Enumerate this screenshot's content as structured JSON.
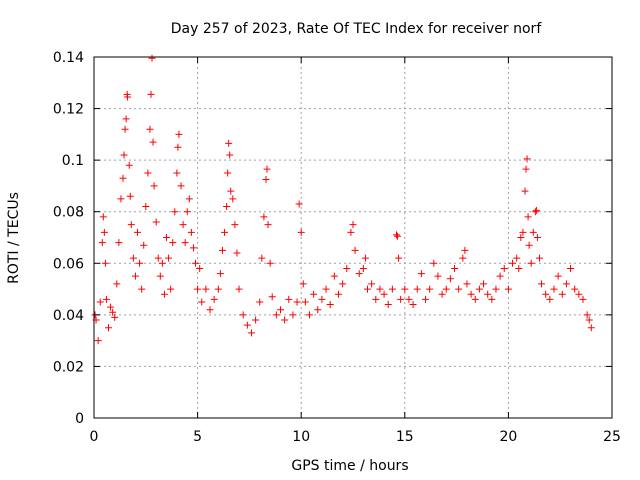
{
  "chart_data": {
    "type": "scatter",
    "title": "Day 257 of 2023, Rate Of TEC Index for receiver norf",
    "xlabel": "GPS time / hours",
    "ylabel": "ROTI / TECUs",
    "xlim": [
      0,
      25
    ],
    "ylim": [
      0,
      0.14
    ],
    "xticks": [
      0,
      5,
      10,
      15,
      20,
      25
    ],
    "xtick_labels": [
      "0",
      "5",
      "10",
      "15",
      "20",
      "25"
    ],
    "yticks": [
      0,
      0.02,
      0.04,
      0.06,
      0.08,
      0.1,
      0.12,
      0.14
    ],
    "ytick_labels": [
      "0",
      "0.02",
      "0.04",
      "0.06",
      "0.08",
      "0.1",
      "0.12",
      "0.14"
    ],
    "grid": true,
    "legend": "none",
    "marker": "plus",
    "color": "#ff0000",
    "series": [
      {
        "points": [
          [
            0.05,
            0.04
          ],
          [
            0.1,
            0.038
          ],
          [
            0.2,
            0.03
          ],
          [
            0.3,
            0.045
          ],
          [
            0.4,
            0.068
          ],
          [
            0.45,
            0.078
          ],
          [
            0.5,
            0.072
          ],
          [
            0.55,
            0.06
          ],
          [
            0.6,
            0.046
          ],
          [
            0.7,
            0.035
          ],
          [
            0.8,
            0.043
          ],
          [
            0.9,
            0.041
          ],
          [
            1.0,
            0.039
          ],
          [
            1.1,
            0.052
          ],
          [
            1.2,
            0.068
          ],
          [
            1.3,
            0.085
          ],
          [
            1.4,
            0.093
          ],
          [
            1.45,
            0.102
          ],
          [
            1.5,
            0.112
          ],
          [
            1.55,
            0.116
          ],
          [
            1.6,
            0.1255
          ],
          [
            1.62,
            0.1245
          ],
          [
            1.7,
            0.098
          ],
          [
            1.75,
            0.086
          ],
          [
            1.8,
            0.075
          ],
          [
            1.9,
            0.062
          ],
          [
            2.0,
            0.055
          ],
          [
            2.1,
            0.072
          ],
          [
            2.2,
            0.06
          ],
          [
            2.3,
            0.05
          ],
          [
            2.4,
            0.067
          ],
          [
            2.5,
            0.082
          ],
          [
            2.6,
            0.095
          ],
          [
            2.7,
            0.112
          ],
          [
            2.75,
            0.1255
          ],
          [
            2.8,
            0.1395
          ],
          [
            2.85,
            0.107
          ],
          [
            2.9,
            0.09
          ],
          [
            3.0,
            0.076
          ],
          [
            3.1,
            0.062
          ],
          [
            3.2,
            0.055
          ],
          [
            3.3,
            0.06
          ],
          [
            3.4,
            0.048
          ],
          [
            3.5,
            0.07
          ],
          [
            3.6,
            0.062
          ],
          [
            3.7,
            0.05
          ],
          [
            3.8,
            0.068
          ],
          [
            3.9,
            0.08
          ],
          [
            4.0,
            0.095
          ],
          [
            4.05,
            0.105
          ],
          [
            4.1,
            0.11
          ],
          [
            4.2,
            0.09
          ],
          [
            4.3,
            0.075
          ],
          [
            4.4,
            0.068
          ],
          [
            4.5,
            0.08
          ],
          [
            4.6,
            0.085
          ],
          [
            4.7,
            0.072
          ],
          [
            4.8,
            0.066
          ],
          [
            4.9,
            0.06
          ],
          [
            5.0,
            0.05
          ],
          [
            5.1,
            0.058
          ],
          [
            5.2,
            0.045
          ],
          [
            5.4,
            0.05
          ],
          [
            5.6,
            0.042
          ],
          [
            5.8,
            0.046
          ],
          [
            6.0,
            0.05
          ],
          [
            6.1,
            0.056
          ],
          [
            6.2,
            0.065
          ],
          [
            6.3,
            0.072
          ],
          [
            6.4,
            0.082
          ],
          [
            6.45,
            0.095
          ],
          [
            6.5,
            0.1065
          ],
          [
            6.55,
            0.102
          ],
          [
            6.6,
            0.088
          ],
          [
            6.7,
            0.085
          ],
          [
            6.8,
            0.075
          ],
          [
            6.9,
            0.064
          ],
          [
            7.0,
            0.05
          ],
          [
            7.2,
            0.04
          ],
          [
            7.4,
            0.036
          ],
          [
            7.6,
            0.033
          ],
          [
            7.8,
            0.038
          ],
          [
            8.0,
            0.045
          ],
          [
            8.1,
            0.062
          ],
          [
            8.2,
            0.078
          ],
          [
            8.3,
            0.0925
          ],
          [
            8.35,
            0.0965
          ],
          [
            8.4,
            0.075
          ],
          [
            8.5,
            0.06
          ],
          [
            8.6,
            0.047
          ],
          [
            8.8,
            0.04
          ],
          [
            9.0,
            0.042
          ],
          [
            9.2,
            0.038
          ],
          [
            9.4,
            0.046
          ],
          [
            9.6,
            0.04
          ],
          [
            9.8,
            0.045
          ],
          [
            9.9,
            0.083
          ],
          [
            10.0,
            0.072
          ],
          [
            10.1,
            0.052
          ],
          [
            10.2,
            0.045
          ],
          [
            10.4,
            0.04
          ],
          [
            10.6,
            0.048
          ],
          [
            10.8,
            0.042
          ],
          [
            11.0,
            0.046
          ],
          [
            11.2,
            0.05
          ],
          [
            11.4,
            0.044
          ],
          [
            11.6,
            0.055
          ],
          [
            11.8,
            0.048
          ],
          [
            12.0,
            0.052
          ],
          [
            12.2,
            0.058
          ],
          [
            12.4,
            0.072
          ],
          [
            12.5,
            0.075
          ],
          [
            12.6,
            0.065
          ],
          [
            12.8,
            0.056
          ],
          [
            13.0,
            0.058
          ],
          [
            13.1,
            0.062
          ],
          [
            13.2,
            0.05
          ],
          [
            13.4,
            0.052
          ],
          [
            13.6,
            0.046
          ],
          [
            13.8,
            0.05
          ],
          [
            14.0,
            0.048
          ],
          [
            14.2,
            0.044
          ],
          [
            14.4,
            0.05
          ],
          [
            14.6,
            0.071
          ],
          [
            14.65,
            0.0705
          ],
          [
            14.7,
            0.062
          ],
          [
            14.8,
            0.046
          ],
          [
            15.0,
            0.05
          ],
          [
            15.2,
            0.046
          ],
          [
            15.4,
            0.044
          ],
          [
            15.6,
            0.05
          ],
          [
            15.8,
            0.056
          ],
          [
            16.0,
            0.046
          ],
          [
            16.2,
            0.05
          ],
          [
            16.4,
            0.06
          ],
          [
            16.6,
            0.055
          ],
          [
            16.8,
            0.048
          ],
          [
            17.0,
            0.05
          ],
          [
            17.2,
            0.054
          ],
          [
            17.4,
            0.058
          ],
          [
            17.6,
            0.05
          ],
          [
            17.8,
            0.062
          ],
          [
            17.9,
            0.065
          ],
          [
            18.0,
            0.052
          ],
          [
            18.2,
            0.048
          ],
          [
            18.4,
            0.046
          ],
          [
            18.6,
            0.05
          ],
          [
            18.8,
            0.052
          ],
          [
            19.0,
            0.048
          ],
          [
            19.2,
            0.046
          ],
          [
            19.4,
            0.05
          ],
          [
            19.6,
            0.055
          ],
          [
            19.8,
            0.058
          ],
          [
            20.0,
            0.05
          ],
          [
            20.2,
            0.06
          ],
          [
            20.4,
            0.062
          ],
          [
            20.5,
            0.058
          ],
          [
            20.6,
            0.07
          ],
          [
            20.7,
            0.072
          ],
          [
            20.8,
            0.088
          ],
          [
            20.85,
            0.0965
          ],
          [
            20.9,
            0.1005
          ],
          [
            20.95,
            0.078
          ],
          [
            21.0,
            0.067
          ],
          [
            21.1,
            0.06
          ],
          [
            21.2,
            0.072
          ],
          [
            21.3,
            0.08
          ],
          [
            21.35,
            0.0805
          ],
          [
            21.4,
            0.07
          ],
          [
            21.5,
            0.062
          ],
          [
            21.6,
            0.052
          ],
          [
            21.8,
            0.048
          ],
          [
            22.0,
            0.046
          ],
          [
            22.2,
            0.05
          ],
          [
            22.4,
            0.055
          ],
          [
            22.6,
            0.048
          ],
          [
            22.8,
            0.052
          ],
          [
            23.0,
            0.058
          ],
          [
            23.2,
            0.05
          ],
          [
            23.4,
            0.048
          ],
          [
            23.6,
            0.046
          ],
          [
            23.8,
            0.04
          ],
          [
            23.9,
            0.038
          ],
          [
            24.0,
            0.035
          ]
        ]
      }
    ]
  }
}
